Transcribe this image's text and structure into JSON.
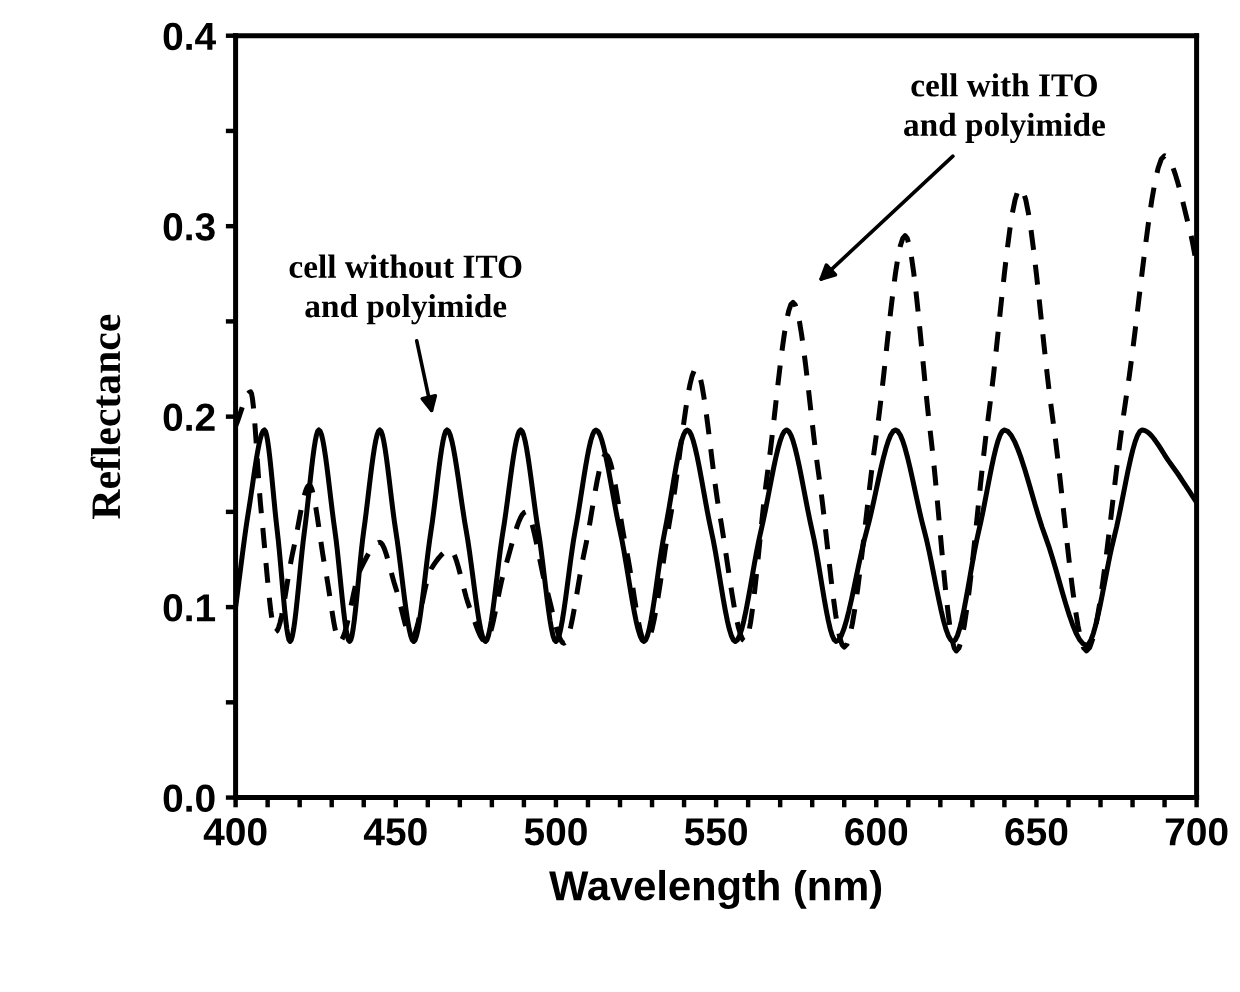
{
  "chart_data": {
    "type": "line",
    "xlabel": "Wavelength (nm)",
    "ylabel": "Reflectance",
    "xlim": [
      400,
      700
    ],
    "ylim": [
      0,
      0.4
    ],
    "xticks": [
      400,
      {
        "value": 410,
        "label": null
      },
      {
        "value": 420,
        "label": null
      },
      {
        "value": 430,
        "label": null
      },
      {
        "value": 440,
        "label": null
      },
      450,
      {
        "value": 460,
        "label": null
      },
      {
        "value": 470,
        "label": null
      },
      {
        "value": 480,
        "label": null
      },
      {
        "value": 490,
        "label": null
      },
      500,
      {
        "value": 510,
        "label": null
      },
      {
        "value": 520,
        "label": null
      },
      {
        "value": 530,
        "label": null
      },
      {
        "value": 540,
        "label": null
      },
      550,
      {
        "value": 560,
        "label": null
      },
      {
        "value": 570,
        "label": null
      },
      {
        "value": 580,
        "label": null
      },
      {
        "value": 590,
        "label": null
      },
      600,
      {
        "value": 610,
        "label": null
      },
      {
        "value": 620,
        "label": null
      },
      {
        "value": 630,
        "label": null
      },
      {
        "value": 640,
        "label": null
      },
      650,
      {
        "value": 660,
        "label": null
      },
      {
        "value": 670,
        "label": null
      },
      {
        "value": 680,
        "label": null
      },
      {
        "value": 690,
        "label": null
      },
      700
    ],
    "yticks": [
      {
        "value": 0,
        "label": "0.0"
      },
      {
        "value": 0.05,
        "label": null
      },
      0.1,
      {
        "value": 0.15,
        "label": null
      },
      0.2,
      {
        "value": 0.25,
        "label": null
      },
      0.3,
      {
        "value": 0.35,
        "label": null
      },
      0.4
    ],
    "grid": false,
    "legend": false,
    "marker": "none",
    "series": [
      {
        "color": "#000000",
        "line_style": "solid",
        "x": [
          400,
          404,
          409,
          413,
          417,
          421.5,
          426,
          431,
          435.6,
          440,
          445,
          450,
          455.6,
          461,
          466,
          472,
          478,
          483.5,
          489,
          494.5,
          500,
          506,
          512.5,
          520,
          527.5,
          534,
          541,
          548.5,
          556,
          564,
          572,
          580,
          587.5,
          597,
          606,
          615,
          624,
          632,
          640,
          652.8,
          665.6,
          674.3,
          683,
          692,
          700
        ],
        "values": [
          0.1,
          0.15,
          0.193,
          0.14,
          0.082,
          0.14,
          0.193,
          0.14,
          0.082,
          0.14,
          0.193,
          0.14,
          0.082,
          0.14,
          0.193,
          0.14,
          0.082,
          0.14,
          0.193,
          0.14,
          0.082,
          0.14,
          0.193,
          0.14,
          0.082,
          0.14,
          0.193,
          0.14,
          0.082,
          0.14,
          0.193,
          0.14,
          0.082,
          0.14,
          0.193,
          0.14,
          0.082,
          0.14,
          0.193,
          0.137,
          0.08,
          0.137,
          0.193,
          0.175,
          0.155
        ]
      },
      {
        "color": "#000000",
        "line_style": "dashed",
        "x": [
          400,
          404.7,
          408,
          412.5,
          418,
          423,
          428,
          432.5,
          439,
          445,
          450,
          455,
          461,
          467,
          473,
          478,
          484,
          490.6,
          497,
          502.5,
          509,
          515.6,
          522,
          528,
          536,
          543.75,
          551,
          559,
          566,
          574,
          582,
          590,
          600,
          609,
          617,
          625,
          635,
          645,
          655,
          665.6,
          678,
          690,
          698,
          700
        ],
        "values": [
          0.195,
          0.213,
          0.15,
          0.087,
          0.13,
          0.164,
          0.12,
          0.082,
          0.12,
          0.134,
          0.11,
          0.084,
          0.12,
          0.13,
          0.1,
          0.082,
          0.12,
          0.15,
          0.11,
          0.081,
          0.13,
          0.18,
          0.13,
          0.081,
          0.15,
          0.225,
          0.15,
          0.082,
          0.17,
          0.26,
          0.17,
          0.079,
          0.19,
          0.295,
          0.19,
          0.077,
          0.2,
          0.32,
          0.2,
          0.077,
          0.21,
          0.337,
          0.297,
          0.28
        ]
      }
    ],
    "annotations": [
      "cell without ITO\nand polyimide",
      "cell with ITO\nand polyimide"
    ]
  }
}
